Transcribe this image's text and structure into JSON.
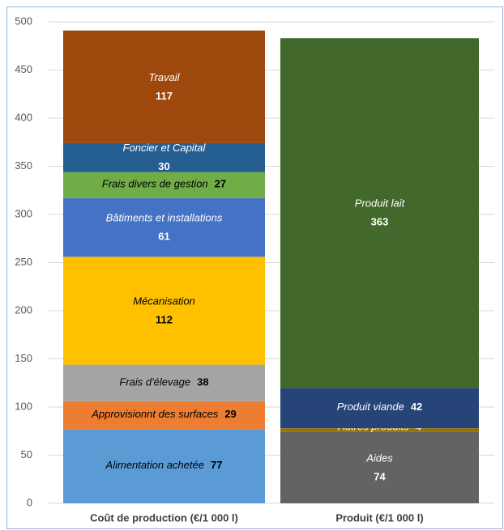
{
  "chart_data": {
    "type": "stacked_bar",
    "categories": [
      "Coût de production (€/1 000 l)",
      "Produit (€/1 000 l)"
    ],
    "ylim": [
      0,
      500
    ],
    "yticks": [
      0,
      50,
      100,
      150,
      200,
      250,
      300,
      350,
      400,
      450,
      500
    ],
    "grid": true,
    "series": [
      {
        "name": "Alimentation achetée",
        "color": "#5b9bd5",
        "values": [
          77,
          null
        ]
      },
      {
        "name": "Approvisionnt des surfaces",
        "color": "#ed7d31",
        "values": [
          29,
          null
        ]
      },
      {
        "name": "Frais d'élevage",
        "color": "#a5a5a5",
        "values": [
          38,
          null
        ]
      },
      {
        "name": "Mécanisation",
        "color": "#ffc000",
        "values": [
          112,
          null
        ]
      },
      {
        "name": "Bâtiments et installations",
        "color": "#4472c4",
        "values": [
          61,
          null
        ]
      },
      {
        "name": "Frais divers de gestion",
        "color": "#70ad47",
        "values": [
          27,
          null
        ]
      },
      {
        "name": "Foncier et Capital",
        "color": "#255e91",
        "values": [
          30,
          null
        ]
      },
      {
        "name": "Travail",
        "color": "#9e480e",
        "values": [
          117,
          null
        ]
      },
      {
        "name": "Aides",
        "color": "#636363",
        "values": [
          null,
          74
        ]
      },
      {
        "name": "Autres produits",
        "color": "#997300",
        "values": [
          null,
          4
        ]
      },
      {
        "name": "Produit viande",
        "color": "#264478",
        "values": [
          null,
          42
        ]
      },
      {
        "name": "Produit lait",
        "color": "#43682b",
        "values": [
          null,
          363
        ]
      }
    ]
  }
}
